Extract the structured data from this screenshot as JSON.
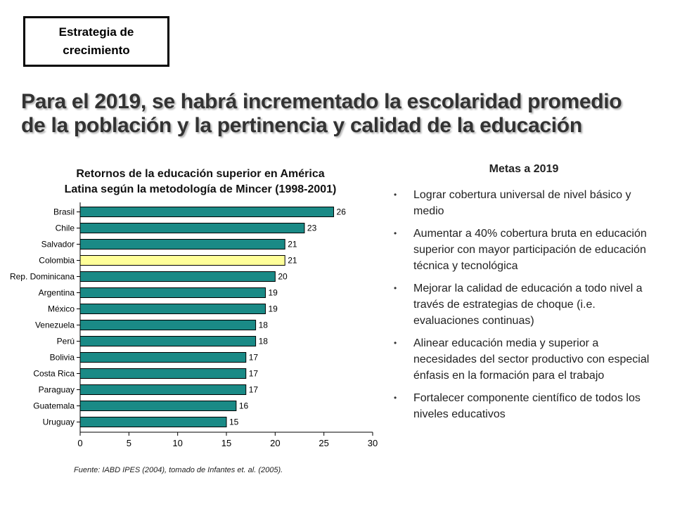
{
  "badge": {
    "line1": "Estrategia de",
    "line2": "crecimiento"
  },
  "headline": {
    "line1": "Para el 2019, se habrá incrementado la escolaridad promedio",
    "line2": "de la población y la pertinencia y calidad de la educación"
  },
  "chart_data": {
    "type": "bar",
    "orientation": "horizontal",
    "title": "Retornos de la educación superior en América Latina según la metodología de Mincer (1998-2001)",
    "title_line1": "Retornos de la educación superior en América",
    "title_line2": "Latina según la metodología de Mincer (1998-2001)",
    "categories": [
      "Brasil",
      "Chile",
      "Salvador",
      "Colombia",
      "Rep. Dominicana",
      "Argentina",
      "México",
      "Venezuela",
      "Perú",
      "Bolivia",
      "Costa Rica",
      "Paraguay",
      "Guatemala",
      "Uruguay"
    ],
    "values": [
      26,
      23,
      21,
      21,
      20,
      19,
      19,
      18,
      18,
      17,
      17,
      17,
      16,
      15
    ],
    "data_labels": [
      "26",
      "23",
      "21",
      "21",
      "20",
      "19",
      "19",
      "18",
      "18",
      "17",
      "17",
      "17",
      "16",
      "15"
    ],
    "highlight_category": "Colombia",
    "xlim": [
      0,
      30
    ],
    "xticks": [
      0,
      5,
      10,
      15,
      20,
      25,
      30
    ],
    "grid": false,
    "xlabel": "",
    "ylabel": "",
    "colors": {
      "bar": "#1a8a86",
      "highlight": "#ffff99",
      "bar_border": "#000000"
    }
  },
  "source": "Fuente: IABD IPES (2004), tomado de Infantes et. al. (2005).",
  "goals": {
    "title": "Metas a 2019",
    "bullet": "•",
    "items": [
      "Lograr cobertura universal de nivel básico y medio",
      "Aumentar a 40% cobertura bruta en educación superior con mayor participación de educación técnica y tecnológica",
      "Mejorar la calidad de educación a todo nivel a través de estrategias de choque (i.e. evaluaciones continuas)",
      "Alinear educación media y superior a necesidades del sector productivo con especial énfasis en la formación para el trabajo",
      "Fortalecer componente científico de todos los niveles educativos"
    ]
  }
}
